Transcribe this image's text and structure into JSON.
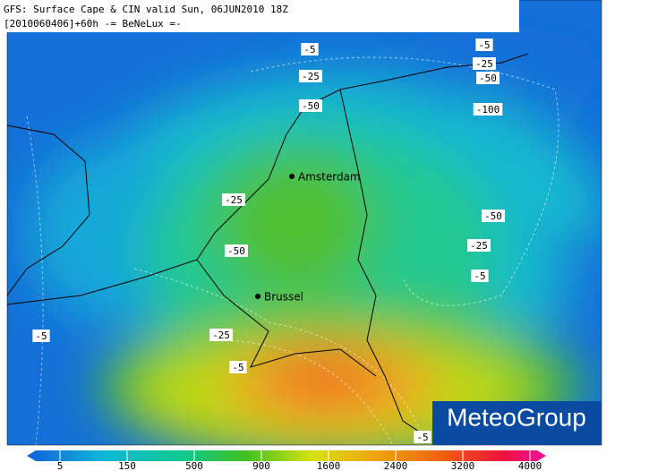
{
  "header": {
    "title": "GFS: Surface Cape & CIN valid Sun, 06JUN2010 18Z",
    "subtitle": "[2010060406]+60h -= BeNeLux =-"
  },
  "cities": [
    "Amsterdam",
    "Brussel"
  ],
  "contour_labels": [
    -5,
    -25,
    -50,
    -5,
    -25,
    -50,
    -100,
    -25,
    -50,
    -25,
    -50,
    -5,
    -5,
    -25,
    -5,
    -5
  ],
  "colorbar": {
    "ticks": [
      5,
      150,
      500,
      900,
      1600,
      2400,
      3200,
      4000
    ]
  },
  "logo": "MeteoGroup"
}
